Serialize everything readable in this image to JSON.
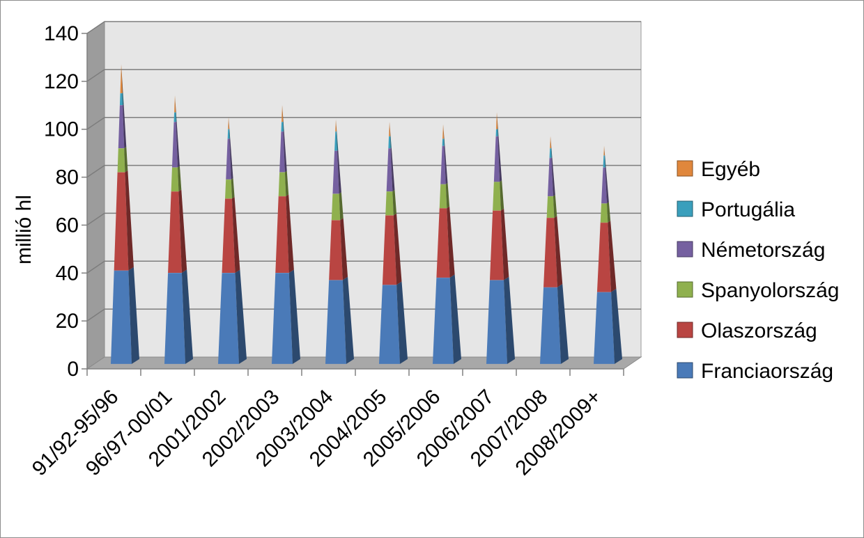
{
  "chart_data": {
    "type": "bar",
    "subtype": "stacked-3d-pyramid",
    "title": "",
    "ylabel": "millió hl",
    "xlabel": "",
    "ylim": [
      0,
      140
    ],
    "yticks": [
      0,
      20,
      40,
      60,
      80,
      100,
      120,
      140
    ],
    "gridlines": true,
    "legend_position": "right",
    "categories": [
      "91/92-95/96",
      "96/97-00/01",
      "2001/2002",
      "2002/2003",
      "2003/2004",
      "2004/2005",
      "2005/2006",
      "2006/2007",
      "2007/2008",
      "2008/2009+"
    ],
    "series": [
      {
        "name": "Franciaország",
        "color": "#4a7ab8",
        "values": [
          39,
          38,
          38,
          38,
          35,
          33,
          36,
          35,
          32,
          30
        ]
      },
      {
        "name": "Olaszország",
        "color": "#b94542",
        "values": [
          41,
          34,
          31,
          32,
          25,
          29,
          29,
          29,
          29,
          29
        ]
      },
      {
        "name": "Spanyolország",
        "color": "#8fb04e",
        "values": [
          10,
          10,
          8,
          10,
          11,
          10,
          10,
          12,
          9,
          8
        ]
      },
      {
        "name": "Németország",
        "color": "#7560a0",
        "values": [
          18,
          19,
          17,
          17,
          18,
          18,
          16,
          19,
          16,
          15
        ]
      },
      {
        "name": "Portugália",
        "color": "#3a9fbc",
        "values": [
          5,
          4,
          4,
          4,
          8,
          5,
          3,
          3,
          4,
          5
        ]
      },
      {
        "name": "Egyéb",
        "color": "#e0873c",
        "values": [
          12,
          7,
          5,
          7,
          5,
          6,
          6,
          7,
          5,
          4
        ]
      }
    ]
  }
}
